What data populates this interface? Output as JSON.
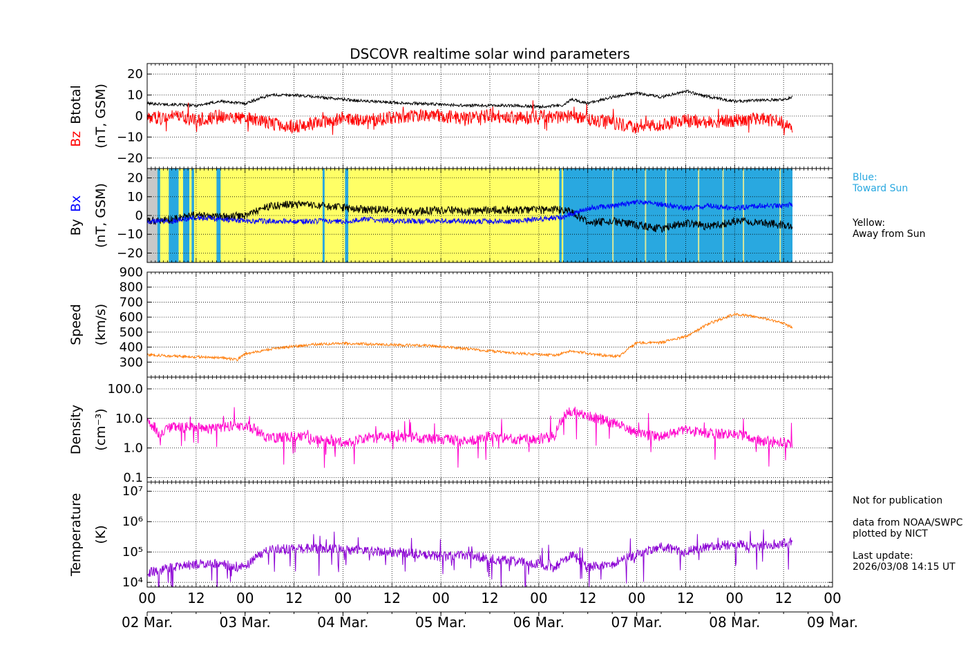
{
  "title": "DSCOVR realtime solar wind parameters",
  "colors": {
    "bz": "#ff0000",
    "btotal": "#000000",
    "bx": "#0000ff",
    "by": "#000000",
    "speed": "#ff7f0e",
    "density": "#ff00cc",
    "temperature": "#8b00d4",
    "toward": "#29a8e0",
    "away": "#ffff66",
    "nodata": "#c8c8c8"
  },
  "x_axis": {
    "hour_ticks": [
      "00",
      "12",
      "00",
      "12",
      "00",
      "12",
      "00",
      "12",
      "00",
      "12",
      "00",
      "12",
      "00",
      "12",
      "00"
    ],
    "day_labels": [
      "02 Mar.",
      "03 Mar.",
      "04 Mar.",
      "05 Mar.",
      "06 Mar.",
      "07 Mar.",
      "08 Mar.",
      "09 Mar."
    ],
    "range_hours": [
      0,
      168
    ],
    "data_end_hours": 158.2
  },
  "notes": {
    "blue_label": "Blue:\nToward Sun",
    "yellow_label": "Yellow:\nAway from Sun",
    "right_note": "Not for publication\n\ndata from NOAA/SWPC\nplotted by NICT\n\nLast update:\n2026/03/08 14:15 UT"
  },
  "chart_data": [
    {
      "type": "line",
      "ylabel_series": [
        "Bz",
        "Btotal"
      ],
      "ylabel_units": "(nT, GSM)",
      "ylim": [
        -25,
        25
      ],
      "yticks": [
        20,
        10,
        0,
        -10,
        -20
      ],
      "ytick_labels": [
        "20",
        "10",
        "0",
        "−10",
        "−20"
      ],
      "series": [
        {
          "name": "Btotal",
          "x": [
            0,
            6,
            12,
            18,
            24,
            30,
            36,
            42,
            48,
            54,
            60,
            66,
            72,
            78,
            84,
            90,
            96,
            102,
            104,
            108,
            114,
            120,
            126,
            132,
            138,
            144,
            150,
            156,
            158
          ],
          "values": [
            6,
            5.5,
            5,
            7,
            6,
            10,
            10,
            9,
            8,
            7,
            6.5,
            6,
            5.5,
            5,
            5,
            5,
            4.5,
            5,
            8,
            6,
            9,
            11,
            9,
            12,
            9,
            7,
            7.5,
            8,
            9
          ]
        },
        {
          "name": "Bz",
          "x": [
            0,
            6,
            12,
            18,
            24,
            30,
            36,
            42,
            48,
            54,
            60,
            66,
            72,
            78,
            84,
            90,
            96,
            102,
            104,
            108,
            114,
            120,
            126,
            132,
            138,
            144,
            150,
            156,
            158
          ],
          "values": [
            -1,
            0,
            -2,
            0,
            -1,
            -3,
            -5,
            -3,
            -1,
            -2,
            -1,
            0,
            0,
            -1,
            0,
            -1,
            0,
            -1,
            0,
            -2,
            -3,
            -6,
            -4,
            -2,
            -3,
            -2,
            -1,
            -3,
            -5
          ]
        }
      ]
    },
    {
      "type": "line",
      "ylabel_series": [
        "By",
        "Bx"
      ],
      "ylabel_units": "(nT, GSM)",
      "ylim": [
        -25,
        25
      ],
      "yticks": [
        20,
        10,
        0,
        -10,
        -20
      ],
      "ytick_labels": [
        "20",
        "10",
        "0",
        "−10",
        "−20"
      ],
      "sector_background": [
        {
          "from": 0,
          "to": 2.5,
          "sector": "nodata"
        },
        {
          "from": 2.5,
          "to": 11.5,
          "sector": "mixed"
        },
        {
          "from": 11.5,
          "to": 102,
          "sector": "away"
        },
        {
          "from": 102,
          "to": 105,
          "sector": "toward"
        },
        {
          "from": 105,
          "to": 158.2,
          "sector": "toward"
        }
      ],
      "series": [
        {
          "name": "By",
          "x": [
            0,
            6,
            12,
            18,
            24,
            30,
            36,
            42,
            48,
            54,
            60,
            66,
            72,
            78,
            84,
            90,
            96,
            102,
            104,
            108,
            114,
            120,
            126,
            132,
            138,
            144,
            150,
            156,
            158
          ],
          "values": [
            -3,
            -2,
            0,
            -1,
            0,
            5,
            6,
            5,
            4,
            3,
            3,
            2,
            3,
            2,
            3,
            3,
            3,
            3,
            2,
            -4,
            -3,
            -5,
            -7,
            -4,
            -6,
            -3,
            -4,
            -5,
            -6
          ]
        },
        {
          "name": "Bx",
          "x": [
            0,
            6,
            12,
            18,
            24,
            30,
            36,
            42,
            48,
            54,
            60,
            66,
            72,
            78,
            84,
            90,
            96,
            102,
            104,
            108,
            114,
            120,
            126,
            132,
            138,
            144,
            150,
            156,
            158
          ],
          "values": [
            -3,
            -3,
            -1,
            -2,
            -3,
            -3,
            -3,
            -3,
            -3,
            -2,
            -3,
            -3,
            -3,
            -3,
            -3,
            -3,
            -2,
            -1,
            1,
            4,
            5,
            7,
            6,
            4,
            5,
            4,
            5,
            5,
            6
          ]
        }
      ]
    },
    {
      "type": "line",
      "ylabel": "Speed",
      "ylabel_units": "(km/s)",
      "ylim": [
        200,
        900
      ],
      "yticks": [
        900,
        800,
        700,
        600,
        500,
        400,
        300
      ],
      "ytick_labels": [
        "900",
        "800",
        "700",
        "600",
        "500",
        "400",
        "300"
      ],
      "series": [
        {
          "name": "Speed",
          "x": [
            0,
            6,
            12,
            18,
            22,
            24,
            30,
            36,
            42,
            48,
            54,
            60,
            66,
            72,
            78,
            84,
            90,
            96,
            100,
            104,
            110,
            114,
            116,
            120,
            126,
            132,
            138,
            144,
            150,
            156,
            158
          ],
          "values": [
            350,
            340,
            335,
            330,
            315,
            355,
            385,
            405,
            420,
            425,
            420,
            415,
            412,
            405,
            390,
            375,
            360,
            350,
            345,
            375,
            350,
            340,
            345,
            430,
            430,
            470,
            560,
            620,
            600,
            560,
            530
          ]
        }
      ]
    },
    {
      "type": "line",
      "ylabel": "Density",
      "ylabel_units": "(cm⁻³)",
      "yscale": "log",
      "ylim": [
        0.07,
        250
      ],
      "yticks": [
        100,
        10,
        1,
        0.1
      ],
      "ytick_labels": [
        "100.0",
        "10.0",
        "1.0",
        "0.1"
      ],
      "series": [
        {
          "name": "Density",
          "x": [
            0,
            3,
            6,
            12,
            18,
            24,
            28,
            30,
            36,
            42,
            48,
            54,
            60,
            66,
            72,
            78,
            84,
            90,
            96,
            100,
            104,
            108,
            114,
            120,
            126,
            132,
            138,
            144,
            150,
            156,
            158
          ],
          "values": [
            8,
            3,
            5,
            5,
            5,
            6,
            3,
            2,
            2.5,
            2,
            1.5,
            2,
            2.5,
            2.2,
            2,
            1.6,
            2.5,
            2,
            2,
            2.5,
            18,
            12,
            7,
            3,
            2.5,
            4,
            3,
            3,
            1.8,
            1.5,
            1.5
          ]
        }
      ]
    },
    {
      "type": "line",
      "ylabel": "Temperature",
      "ylabel_units": "(K)",
      "yscale": "log",
      "ylim": [
        7000,
        20000000
      ],
      "yticks": [
        10000000,
        1000000,
        100000,
        10000
      ],
      "ytick_labels": [
        "10⁷",
        "10⁶",
        "10⁵",
        "10⁴"
      ],
      "series": [
        {
          "name": "Temperature",
          "x": [
            0,
            6,
            12,
            18,
            24,
            28,
            30,
            36,
            42,
            48,
            54,
            60,
            66,
            72,
            78,
            84,
            90,
            96,
            100,
            104,
            108,
            114,
            120,
            126,
            132,
            138,
            144,
            150,
            156,
            158
          ],
          "values": [
            20000,
            30000,
            40000,
            40000,
            30000,
            80000,
            120000,
            130000,
            130000,
            120000,
            110000,
            100000,
            90000,
            70000,
            80000,
            60000,
            50000,
            40000,
            30000,
            80000,
            30000,
            40000,
            80000,
            150000,
            100000,
            150000,
            180000,
            150000,
            200000,
            200000
          ]
        }
      ]
    }
  ]
}
